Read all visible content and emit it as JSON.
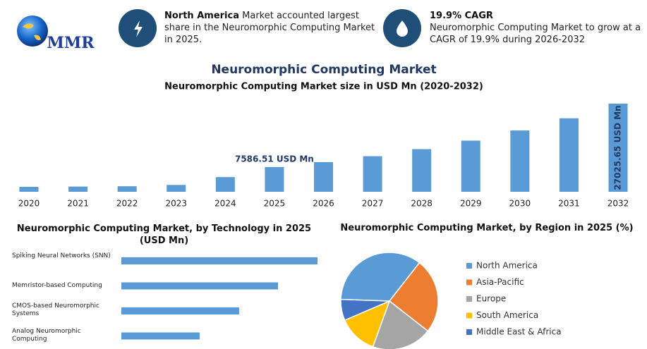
{
  "header": {
    "logo": "MMR",
    "info_1": {
      "bold": "North America",
      "text": "Market accounted largest share in the Neuromorphic Computing Market in 2025."
    },
    "info_2": {
      "bold": "19.9% CAGR",
      "text": "Neuromorphic Computing Market to grow at a CAGR of 19.9% during 2026-2032"
    }
  },
  "chart_data": [
    {
      "type": "bar",
      "title": "Neuromorphic Computing Market",
      "subtitle": "Neuromorphic Computing Market size in USD Mn (2020-2032)",
      "categories": [
        "2020",
        "2021",
        "2022",
        "2023",
        "2024",
        "2025",
        "2026",
        "2027",
        "2028",
        "2029",
        "2030",
        "2031",
        "2032"
      ],
      "values": [
        1500,
        1600,
        1700,
        2100,
        4500,
        7586.51,
        9096,
        10906,
        13076,
        15678,
        18798,
        22539,
        27025.65
      ],
      "value_labels": [
        null,
        null,
        null,
        null,
        null,
        "7586.51 USD Mn",
        null,
        null,
        null,
        null,
        null,
        null,
        "27025.65 USD Mn"
      ],
      "color": "#5b9bd5"
    },
    {
      "type": "hbar",
      "title": "Neuromorphic Computing Market, by Technology in 2025 (USD Mn)",
      "categories": [
        "Spiking Neural Networks (SNN)",
        "Memristor-based Computing",
        "CMOS-based Neuromorphic Systems",
        "Analog Neuromorphic Computing"
      ],
      "values": [
        2711,
        2165,
        1628,
        1082
      ],
      "color": "#5b9bd5"
    },
    {
      "type": "pie",
      "title": "Neuromorphic Computing Market, by Region in 2025 (%)",
      "categories": [
        "North America",
        "Asia-Pacific",
        "Europe",
        "South America",
        "Middle East & Africa"
      ],
      "values": [
        35,
        25,
        20,
        13,
        7
      ],
      "colors": [
        "#5b9bd5",
        "#ed7d31",
        "#a5a5a5",
        "#ffc000",
        "#4472c4"
      ]
    }
  ]
}
